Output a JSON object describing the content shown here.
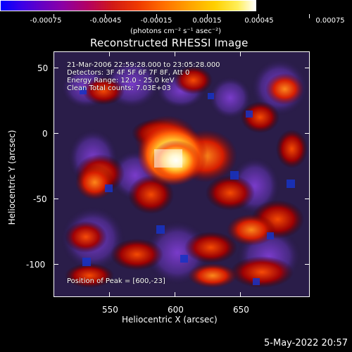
{
  "colorbar": {
    "ticks": [
      "-0.00075",
      "-0.00045",
      "-0.00015",
      "0.00015",
      "0.00045",
      "0.00075"
    ],
    "units": "(photons cm⁻² s⁻¹ asec⁻²)"
  },
  "title": "Reconstructed RHESSI Image",
  "annotations": {
    "time": "21-Mar-2006 22:59:28.000 to 23:05:28.000",
    "detectors": "Detectors: 3F 4F 5F 6F 7F 8F, Att 0",
    "energy": "Energy Range: 12.0 - 25.0 keV",
    "clean": "Clean     Total counts: 7.03E+03",
    "peak": "Position of Peak = [600,-23]"
  },
  "axes": {
    "xlabel": "Heliocentric X (arcsec)",
    "ylabel": "Heliocentric Y (arcsec)",
    "xticks": [
      "550",
      "600",
      "650"
    ],
    "yticks": [
      "50",
      "0",
      "-50",
      "-100"
    ]
  },
  "footer": {
    "date": "5-May-2022 20:57"
  }
}
